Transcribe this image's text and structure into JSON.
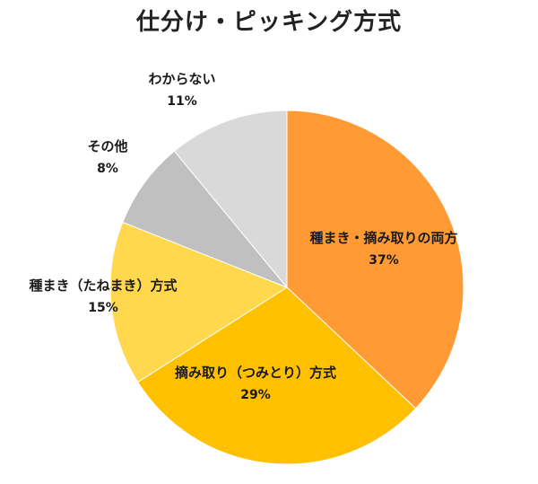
{
  "chart_data": {
    "type": "pie",
    "title": "仕分け・ピッキング方式",
    "start_angle_deg": 0,
    "direction": "clockwise",
    "slices": [
      {
        "label": "種まき・摘み取りの両方",
        "value": 37,
        "value_label": "37%",
        "color": "#FF9A35"
      },
      {
        "label": "摘み取り（つみとり）方式",
        "value": 29,
        "value_label": "29%",
        "color": "#FFC000"
      },
      {
        "label": "種まき（たねまき）方式",
        "value": 15,
        "value_label": "15%",
        "color": "#FFD84D"
      },
      {
        "label": "その他",
        "value": 8,
        "value_label": "8%",
        "color": "#C0C0C0"
      },
      {
        "label": "わからない",
        "value": 11,
        "value_label": "11%",
        "color": "#D9D9D9"
      }
    ],
    "legend": "none",
    "grid": false
  }
}
